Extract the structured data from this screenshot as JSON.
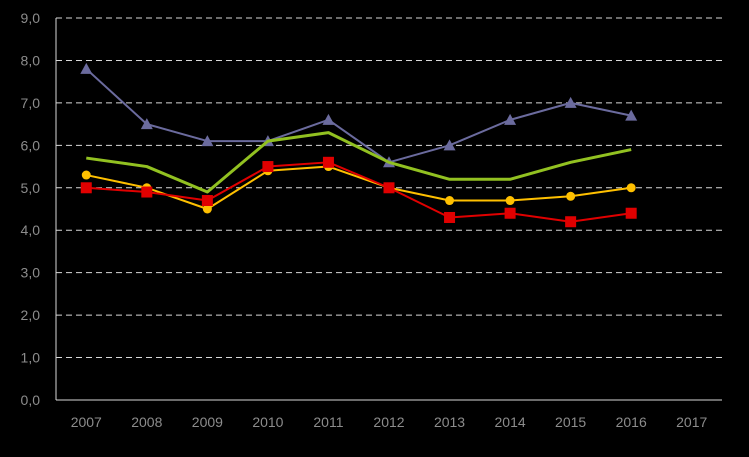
{
  "chart_data": {
    "type": "line",
    "title": "",
    "xlabel": "",
    "ylabel": "",
    "categories": [
      "2007",
      "2008",
      "2009",
      "2010",
      "2011",
      "2012",
      "2013",
      "2014",
      "2015",
      "2016",
      "2017"
    ],
    "ylim": [
      0,
      9
    ],
    "yticks": [
      "0,0",
      "1,0",
      "2,0",
      "3,0",
      "4,0",
      "5,0",
      "6,0",
      "7,0",
      "8,0",
      "9,0"
    ],
    "grid": true,
    "legend": "none",
    "series": [
      {
        "color": "#6b6b9e",
        "marker": "triangle",
        "values": [
          7.8,
          6.5,
          6.1,
          6.1,
          6.6,
          5.6,
          6.0,
          6.6,
          7.0,
          6.7,
          null
        ]
      },
      {
        "color": "#92c121",
        "marker": "none",
        "values": [
          5.7,
          5.5,
          4.9,
          6.1,
          6.3,
          5.6,
          5.2,
          5.2,
          5.6,
          5.9,
          null
        ]
      },
      {
        "color": "#ffc000",
        "marker": "circle",
        "values": [
          5.3,
          5.0,
          4.5,
          5.4,
          5.5,
          5.0,
          4.7,
          4.7,
          4.8,
          5.0,
          null
        ]
      },
      {
        "color": "#e00000",
        "marker": "square",
        "values": [
          5.0,
          4.9,
          4.7,
          5.5,
          5.6,
          5.0,
          4.3,
          4.4,
          4.2,
          4.4,
          null
        ]
      }
    ]
  }
}
